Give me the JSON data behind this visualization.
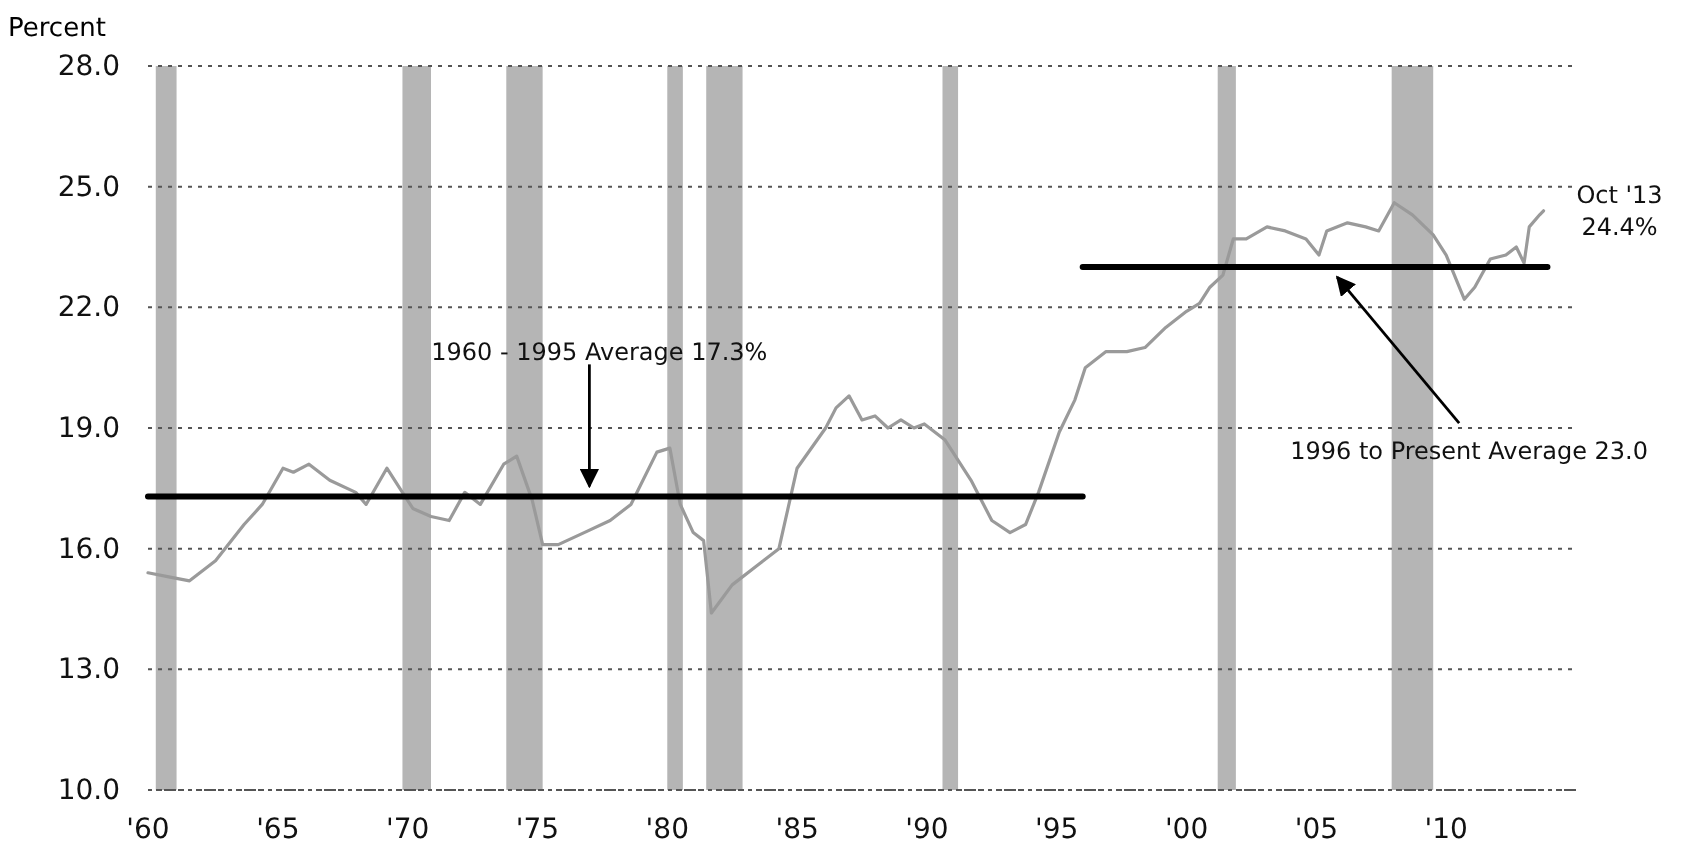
{
  "chart_data": {
    "type": "line",
    "ylabel": "Percent",
    "xlim": [
      1960,
      2015
    ],
    "xticks": [
      {
        "value": 1960,
        "label": "'60"
      },
      {
        "value": 1965,
        "label": "'65"
      },
      {
        "value": 1970,
        "label": "'70"
      },
      {
        "value": 1975,
        "label": "'75"
      },
      {
        "value": 1980,
        "label": "'80"
      },
      {
        "value": 1985,
        "label": "'85"
      },
      {
        "value": 1990,
        "label": "'90"
      },
      {
        "value": 1995,
        "label": "'95"
      },
      {
        "value": 2000,
        "label": "'00"
      },
      {
        "value": 2005,
        "label": "'05"
      },
      {
        "value": 2010,
        "label": "'10"
      }
    ],
    "ylim": [
      10,
      28
    ],
    "yticks": [
      {
        "value": 10,
        "label": "10.0"
      },
      {
        "value": 13,
        "label": "13.0"
      },
      {
        "value": 16,
        "label": "16.0"
      },
      {
        "value": 19,
        "label": "19.0"
      },
      {
        "value": 22,
        "label": "22.0"
      },
      {
        "value": 25,
        "label": "25.0"
      },
      {
        "value": 28,
        "label": "28.0"
      }
    ],
    "grid": "y",
    "bands": [
      {
        "axis": "x",
        "from": 1960.3,
        "to": 1961.1,
        "color": "#b5b5b5"
      },
      {
        "axis": "x",
        "from": 1969.8,
        "to": 1970.9,
        "color": "#b5b5b5"
      },
      {
        "axis": "x",
        "from": 1973.8,
        "to": 1975.2,
        "color": "#b5b5b5"
      },
      {
        "axis": "x",
        "from": 1980.0,
        "to": 1980.6,
        "color": "#b5b5b5"
      },
      {
        "axis": "x",
        "from": 1981.5,
        "to": 1982.9,
        "color": "#b5b5b5"
      },
      {
        "axis": "x",
        "from": 1990.6,
        "to": 1991.2,
        "color": "#b5b5b5"
      },
      {
        "axis": "x",
        "from": 2001.2,
        "to": 2001.9,
        "color": "#b5b5b5"
      },
      {
        "axis": "x",
        "from": 2007.9,
        "to": 2009.5,
        "color": "#b5b5b5"
      }
    ],
    "series": [
      {
        "color": "#9a9a9a",
        "x": [
          1960.0,
          1960.8,
          1961.6,
          1962.6,
          1963.7,
          1964.4,
          1965.2,
          1965.6,
          1966.2,
          1967.0,
          1968.0,
          1968.4,
          1969.2,
          1969.7,
          1970.2,
          1970.9,
          1971.6,
          1972.2,
          1972.8,
          1973.7,
          1974.2,
          1974.8,
          1975.2,
          1975.8,
          1976.8,
          1977.8,
          1978.6,
          1979.6,
          1980.1,
          1980.5,
          1981.0,
          1981.4,
          1981.7,
          1982.5,
          1983.5,
          1984.3,
          1985.0,
          1986.1,
          1986.5,
          1987.0,
          1987.5,
          1988.0,
          1988.5,
          1989.0,
          1989.5,
          1989.9,
          1990.7,
          1991.7,
          1992.5,
          1993.2,
          1993.8,
          1994.3,
          1995.1,
          1995.7,
          1996.1,
          1996.9,
          1997.7,
          1998.4,
          1999.2,
          2000.0,
          2000.5,
          2000.9,
          2001.4,
          2001.8,
          2002.3,
          2003.1,
          2003.8,
          2004.6,
          2005.1,
          2005.4,
          2006.2,
          2006.9,
          2007.4,
          2008.0,
          2008.7,
          2009.5,
          2010.0,
          2010.7,
          2011.1,
          2011.7,
          2012.3,
          2012.7,
          2013.0,
          2013.2,
          2013.6,
          2013.75
        ],
        "values": [
          15.4,
          15.3,
          15.2,
          15.7,
          16.6,
          17.1,
          18.0,
          17.9,
          18.1,
          17.7,
          17.4,
          17.1,
          18.0,
          17.5,
          17.0,
          16.8,
          16.7,
          17.4,
          17.1,
          18.1,
          18.3,
          17.2,
          16.1,
          16.1,
          16.4,
          16.7,
          17.1,
          18.4,
          18.5,
          17.1,
          16.4,
          16.2,
          14.4,
          15.1,
          15.6,
          16.0,
          18.0,
          19.0,
          19.5,
          19.8,
          19.2,
          19.3,
          19.0,
          19.2,
          19.0,
          19.1,
          18.7,
          17.7,
          16.7,
          16.4,
          16.6,
          17.4,
          18.9,
          19.7,
          20.5,
          20.9,
          20.9,
          21.0,
          21.5,
          21.9,
          22.1,
          22.5,
          22.8,
          23.7,
          23.7,
          24.0,
          23.9,
          23.7,
          23.3,
          23.9,
          24.1,
          24.0,
          23.9,
          24.6,
          24.3,
          23.8,
          23.3,
          22.2,
          22.5,
          23.2,
          23.3,
          23.5,
          23.1,
          24.0,
          24.3,
          24.4
        ]
      },
      {
        "color": "#000000",
        "x": [
          1960,
          1996
        ],
        "values": [
          17.3,
          17.3
        ]
      },
      {
        "color": "#000000",
        "x": [
          1996,
          2013.9
        ],
        "values": [
          23.0,
          23.0
        ]
      }
    ],
    "annotations": [
      {
        "text": "1960 - 1995 Average 17.3%",
        "x": 1977,
        "y": 17.3
      },
      {
        "text": "1996 to Present Average 23.0",
        "x": 2005.8,
        "y": 23.0
      },
      {
        "text": "Oct '13\n24.4%",
        "x": 2013.75,
        "y": 24.4
      }
    ]
  }
}
